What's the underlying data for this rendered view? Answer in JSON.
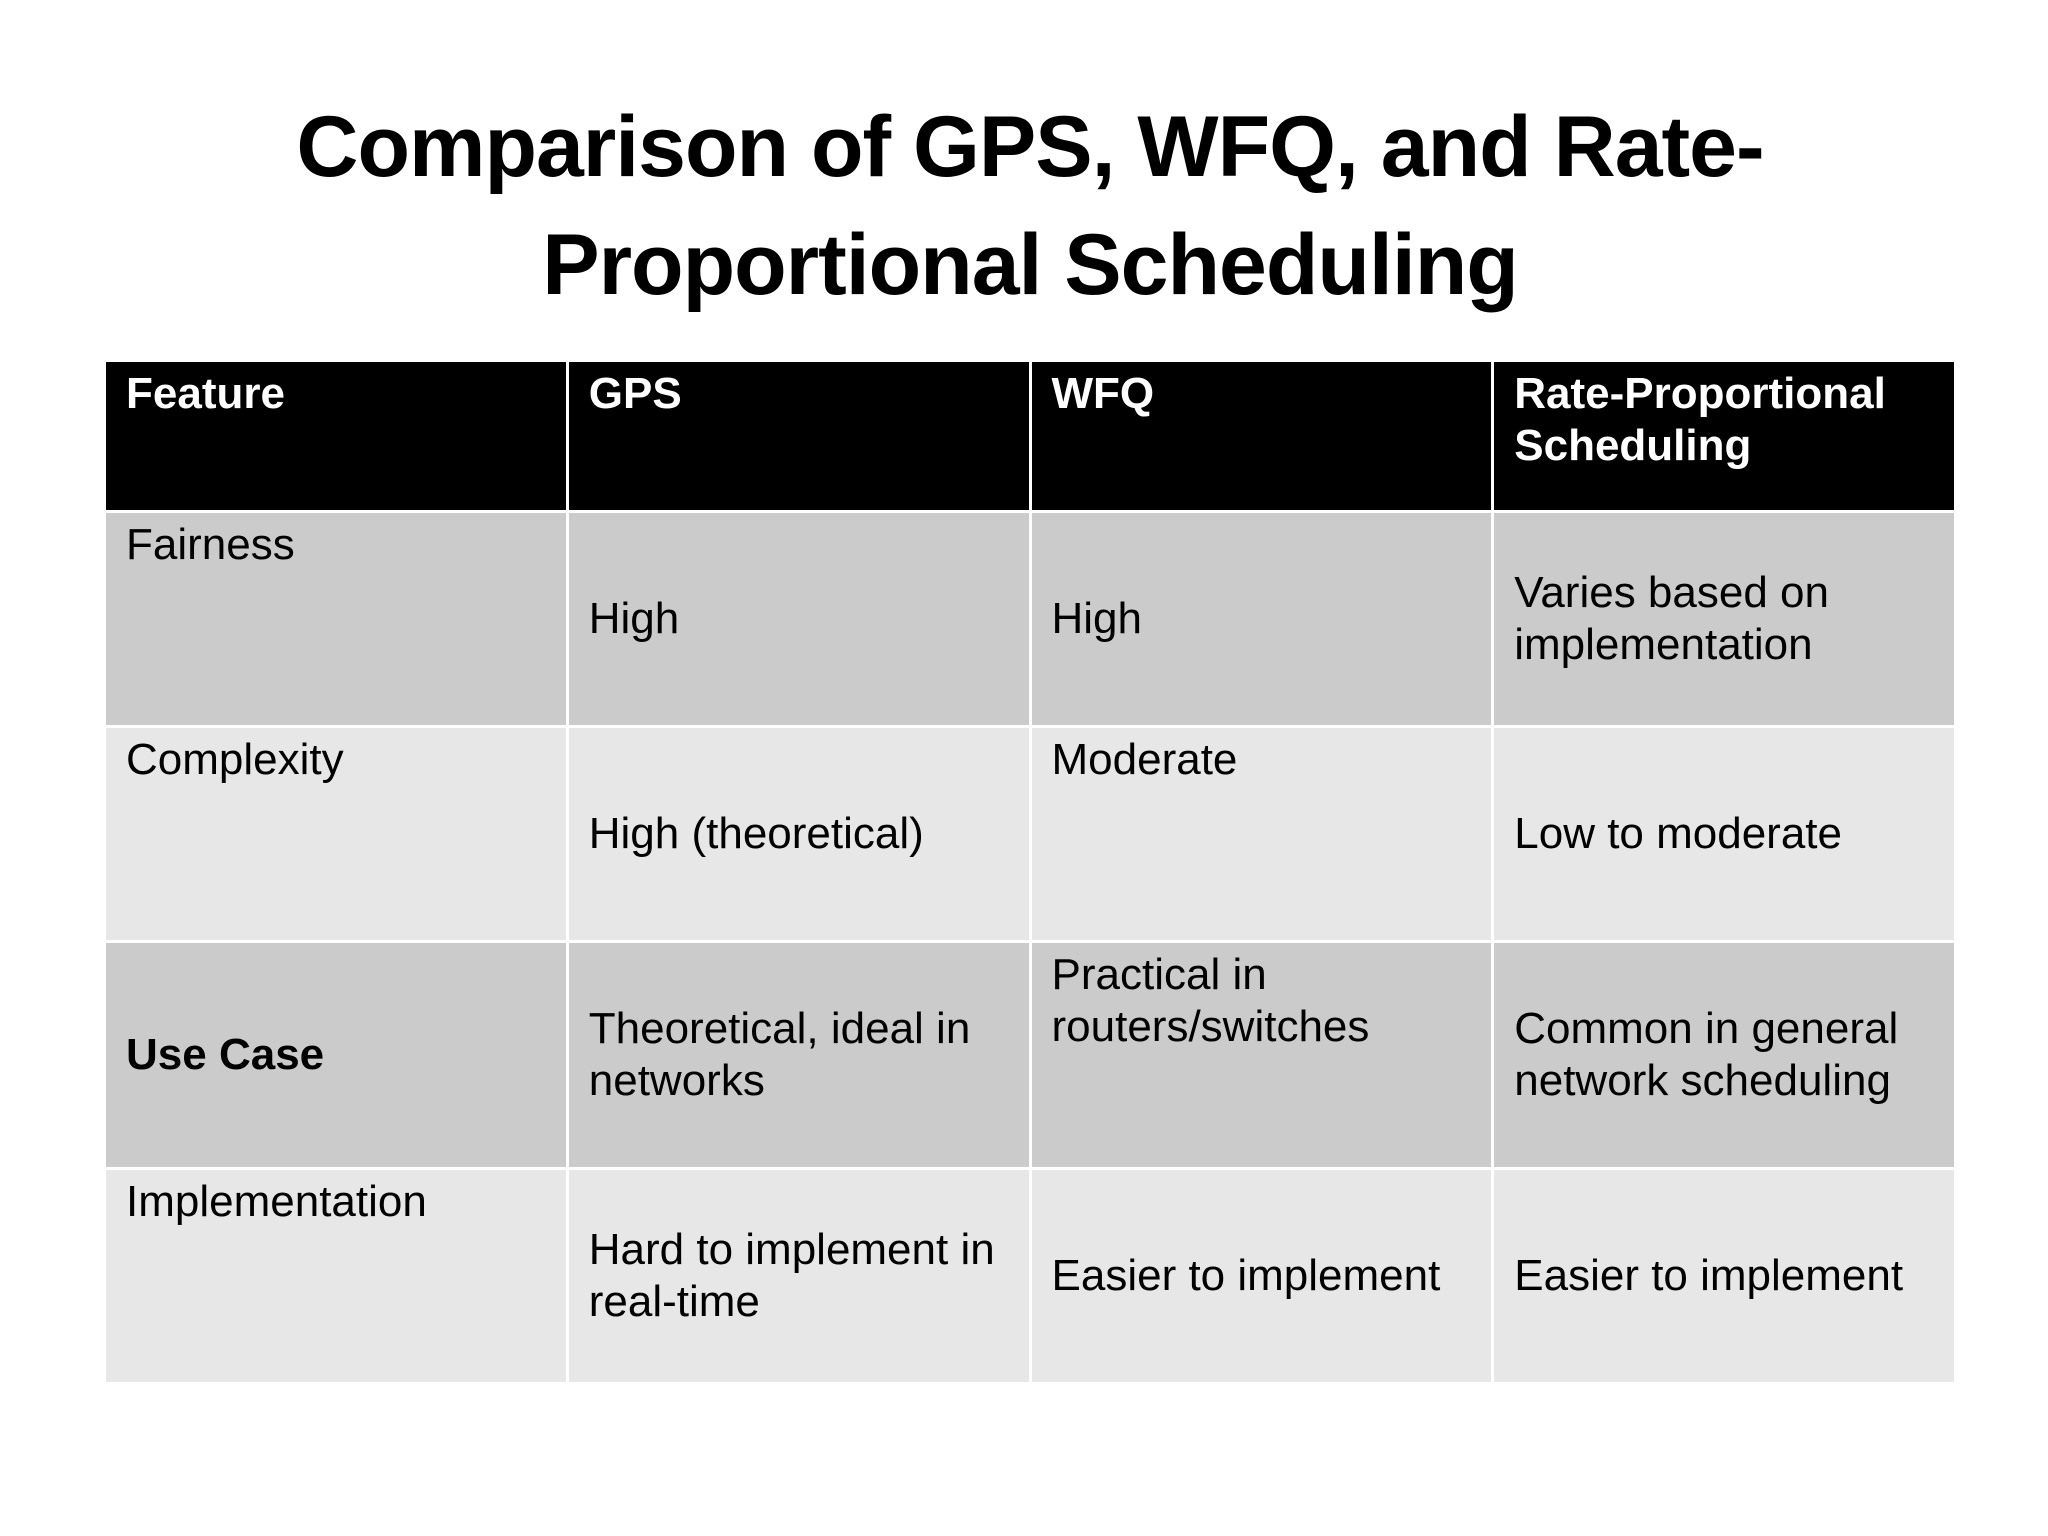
{
  "slide": {
    "title_line1": "Comparison of GPS, WFQ, and Rate-",
    "title_line2": "Proportional Scheduling"
  },
  "table": {
    "headers": [
      "Feature",
      "GPS",
      "WFQ",
      "Rate-Proportional Scheduling"
    ],
    "rows": [
      [
        "Fairness",
        "High",
        "High",
        "Varies based on implementation"
      ],
      [
        "Complexity",
        "High (theoretical)",
        "Moderate",
        "Low to moderate"
      ],
      [
        "Use Case",
        "Theoretical, ideal in networks",
        "Practical in routers/switches",
        "Common in general network scheduling"
      ],
      [
        "Implementation",
        "Hard to implement in real-time",
        "Easier to implement",
        "Easier to implement"
      ]
    ]
  },
  "colors": {
    "header_bg": "#000000",
    "header_text": "#ffffff",
    "row_odd_bg": "#cbcbcb",
    "row_even_bg": "#e7e7e7"
  }
}
